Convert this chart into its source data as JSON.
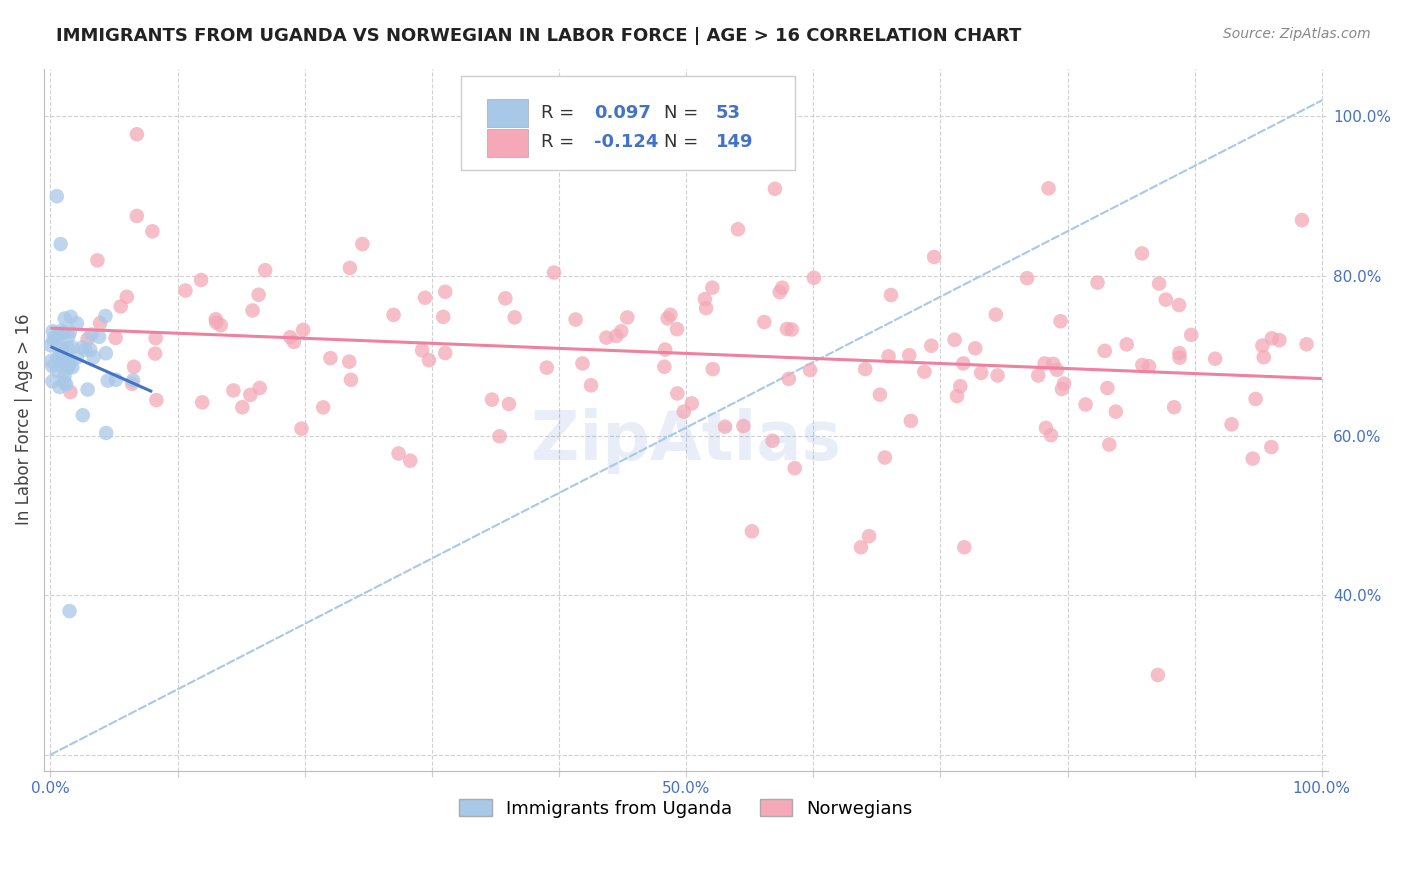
{
  "title": "IMMIGRANTS FROM UGANDA VS NORWEGIAN IN LABOR FORCE | AGE > 16 CORRELATION CHART",
  "source": "Source: ZipAtlas.com",
  "ylabel": "In Labor Force | Age > 16",
  "background_color": "#ffffff",
  "grid_color": "#cccccc",
  "uganda_color": "#a8c8e8",
  "norwegian_color": "#f4a8b8",
  "uganda_line_color": "#4472c4",
  "norwegian_line_color": "#f080a0",
  "dashed_line_color": "#a8c8e8",
  "legend_R_uganda": "0.097",
  "legend_N_uganda": "53",
  "legend_R_norwegian": "-0.124",
  "legend_N_norwegian": "149",
  "xlim": [
    -0.005,
    1.005
  ],
  "ylim": [
    0.18,
    1.06
  ],
  "xticks": [
    0.0,
    0.1,
    0.2,
    0.3,
    0.4,
    0.5,
    0.6,
    0.7,
    0.8,
    0.9,
    1.0
  ],
  "xticklabels": [
    "0.0%",
    "",
    "",
    "",
    "",
    "50.0%",
    "",
    "",
    "",
    "",
    "100.0%"
  ],
  "yticks_right": [
    0.4,
    0.6,
    0.8,
    1.0
  ],
  "yticklabels_right": [
    "40.0%",
    "60.0%",
    "80.0%",
    "100.0%"
  ],
  "title_fontsize": 13,
  "source_fontsize": 10,
  "tick_fontsize": 11,
  "label_fontsize": 12
}
